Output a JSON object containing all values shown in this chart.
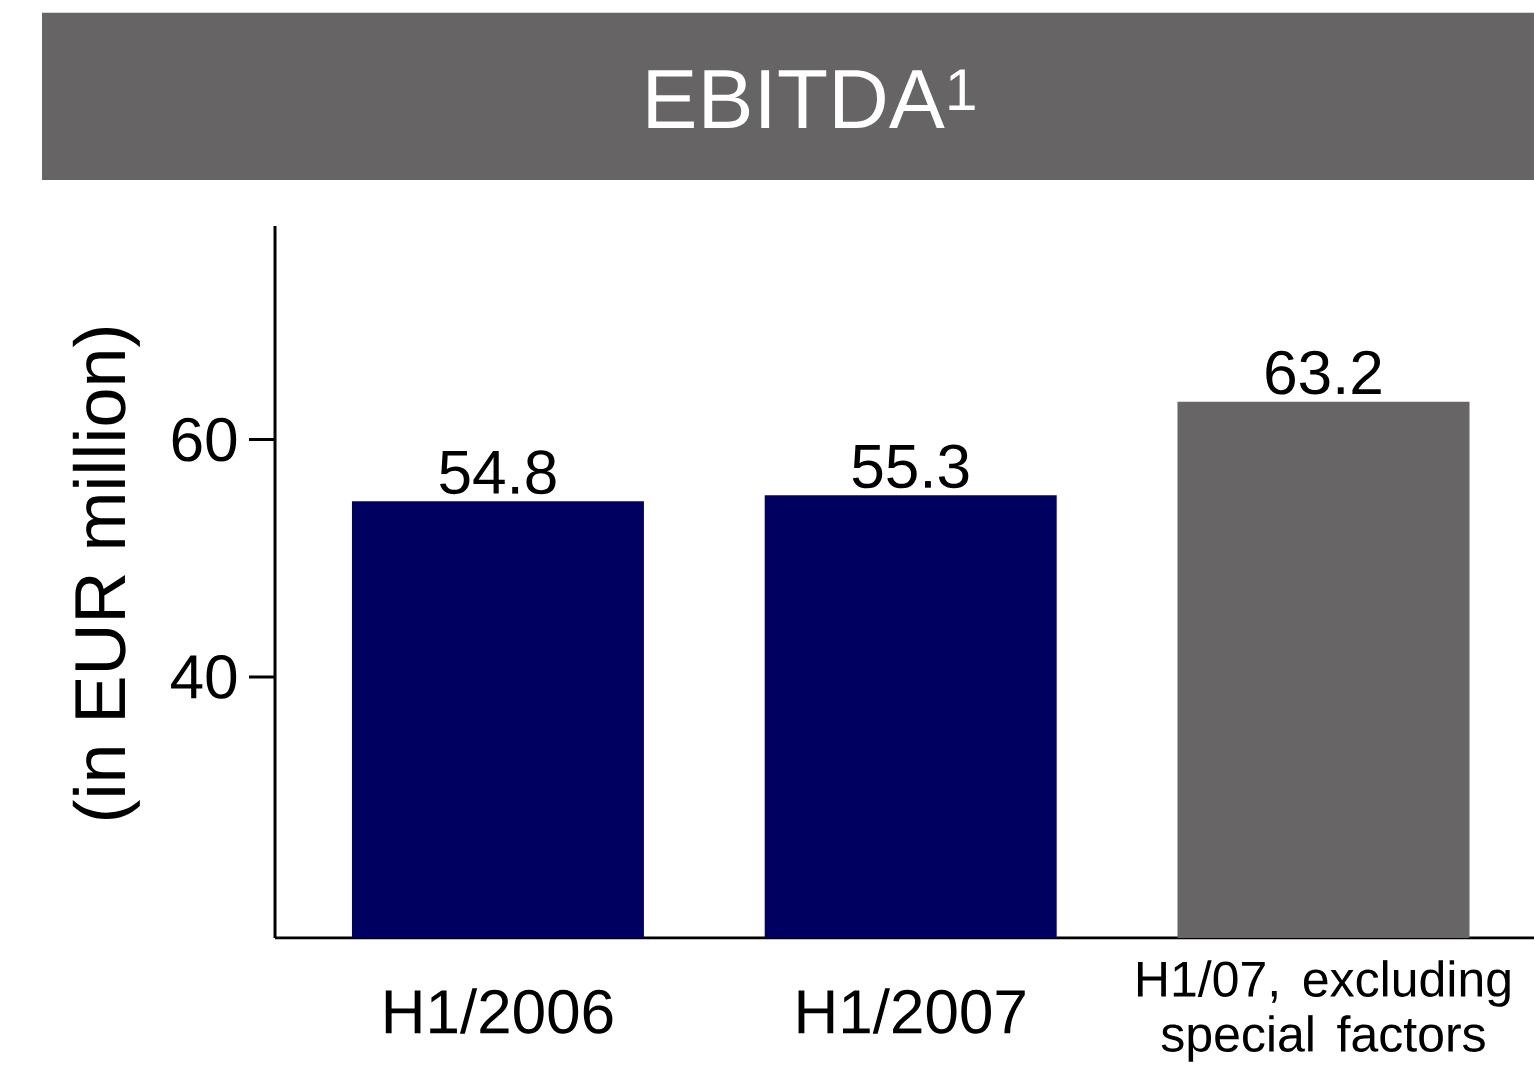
{
  "chart_data": {
    "type": "bar",
    "title": "EBITDA$^{1}$",
    "ylabel": "(in EUR million)",
    "categories": [
      "H1/2006",
      "H1/2007",
      "H1/07, excluding special factors"
    ],
    "values": [
      54.8,
      55.3,
      63.2
    ],
    "colors": [
      "#000060",
      "#000060",
      "#676566"
    ],
    "ylim": [
      18,
      78
    ],
    "yticks": [
      40,
      60
    ],
    "data_labels": true
  }
}
